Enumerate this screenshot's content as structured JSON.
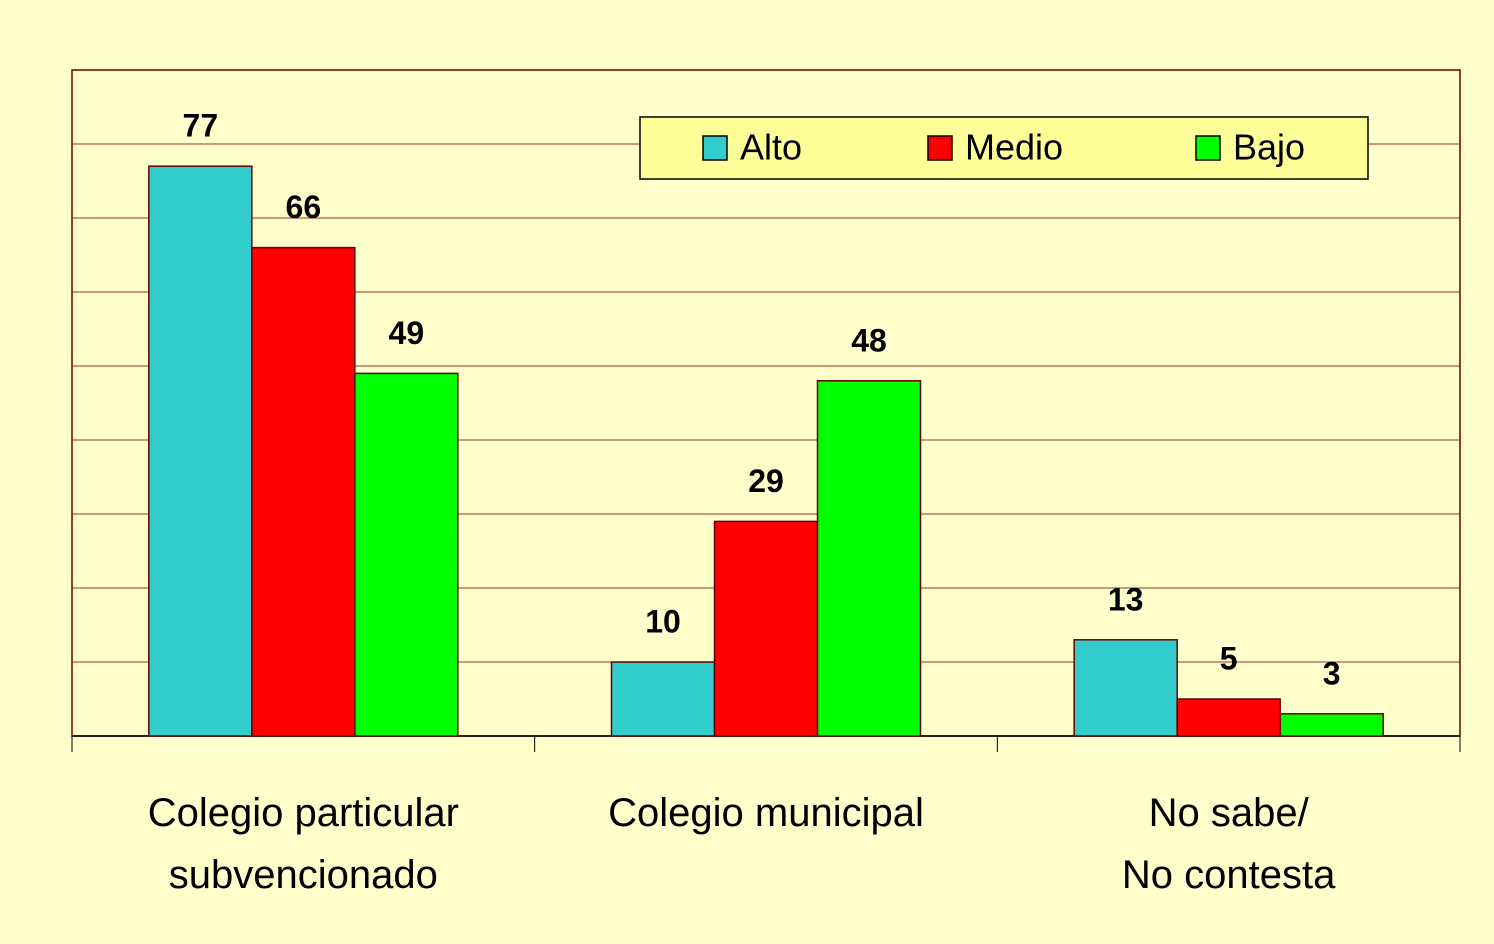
{
  "chart_data": {
    "type": "bar",
    "categories": [
      "Colegio particular\nsubvencionado",
      "Colegio municipal",
      "No sabe/\nNo contesta"
    ],
    "series": [
      {
        "name": "Alto",
        "color": "#33cccc",
        "values": [
          77,
          10,
          13
        ]
      },
      {
        "name": "Medio",
        "color": "#ff0000",
        "values": [
          66,
          29,
          5
        ]
      },
      {
        "name": "Bajo",
        "color": "#00ff00",
        "values": [
          49,
          48,
          3
        ]
      }
    ],
    "ylim": [
      0,
      90
    ],
    "yticks": [
      0,
      10,
      20,
      30,
      40,
      50,
      60,
      70,
      80,
      90
    ],
    "grid": true,
    "legend": "top-right"
  }
}
